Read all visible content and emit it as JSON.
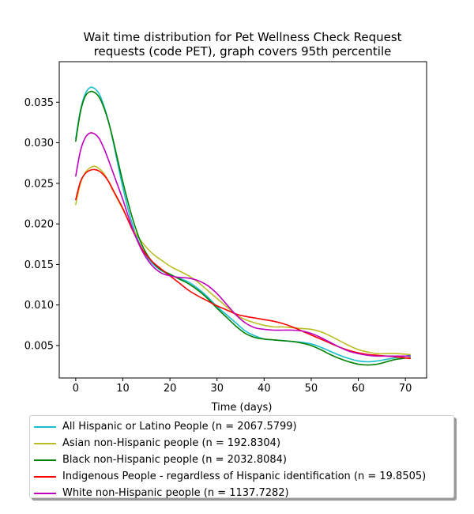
{
  "chart_data": {
    "type": "line",
    "title": "Wait time distribution  for Pet Wellness Check Request",
    "subtitle": "requests (code PET), graph covers 95th percentile",
    "xlabel": "Time (days)",
    "ylabel": "",
    "xlim": [
      -3.5,
      74.5
    ],
    "ylim": [
      0.001,
      0.04
    ],
    "xticks": [
      0,
      10,
      20,
      30,
      40,
      50,
      60,
      70
    ],
    "yticks": [
      0.005,
      0.01,
      0.015,
      0.02,
      0.025,
      0.03,
      0.035
    ],
    "xtick_labels": [
      "0",
      "10",
      "20",
      "30",
      "40",
      "50",
      "60",
      "70"
    ],
    "ytick_labels": [
      "0.005",
      "0.010",
      "0.015",
      "0.020",
      "0.025",
      "0.030",
      "0.035"
    ],
    "grid": false,
    "legend_position": "below",
    "series": [
      {
        "name": "All Hispanic or Latino People (n = 2067.5799)",
        "color": "#17becf",
        "x": [
          0,
          1,
          2,
          3,
          4,
          5,
          6,
          7,
          8,
          10,
          12,
          14,
          16,
          18,
          20,
          22,
          24,
          26,
          28,
          30,
          32,
          34,
          36,
          38,
          40,
          42,
          44,
          46,
          48,
          50,
          52,
          54,
          56,
          58,
          60,
          62,
          64,
          66,
          68,
          71
        ],
        "y": [
          0.0305,
          0.034,
          0.036,
          0.0368,
          0.0367,
          0.036,
          0.0345,
          0.0325,
          0.03,
          0.0245,
          0.02,
          0.017,
          0.0153,
          0.0143,
          0.0137,
          0.0133,
          0.0128,
          0.012,
          0.011,
          0.0098,
          0.0088,
          0.0078,
          0.0068,
          0.0062,
          0.0058,
          0.0057,
          0.0056,
          0.0055,
          0.0054,
          0.0052,
          0.0048,
          0.0043,
          0.0038,
          0.0034,
          0.0031,
          0.003,
          0.0031,
          0.0033,
          0.0035,
          0.0038
        ]
      },
      {
        "name": "Asian non-Hispanic people (n = 192.8304)",
        "color": "#bcbd22",
        "x": [
          0,
          1,
          2,
          3,
          4,
          5,
          6,
          7,
          8,
          10,
          12,
          14,
          16,
          18,
          20,
          22,
          24,
          26,
          28,
          30,
          32,
          34,
          36,
          38,
          40,
          42,
          44,
          46,
          48,
          50,
          52,
          54,
          56,
          58,
          60,
          62,
          64,
          66,
          68,
          71
        ],
        "y": [
          0.0224,
          0.025,
          0.0263,
          0.0269,
          0.0271,
          0.0268,
          0.0262,
          0.0252,
          0.024,
          0.0218,
          0.0195,
          0.0178,
          0.0165,
          0.0156,
          0.0148,
          0.0142,
          0.0136,
          0.0128,
          0.0118,
          0.0108,
          0.0098,
          0.0088,
          0.0082,
          0.0078,
          0.0075,
          0.0073,
          0.0073,
          0.0072,
          0.0071,
          0.007,
          0.0067,
          0.0062,
          0.0056,
          0.005,
          0.0045,
          0.0042,
          0.004,
          0.004,
          0.004,
          0.0039
        ]
      },
      {
        "name": "Black non-Hispanic people (n = 2032.8084)",
        "color": "#008000",
        "x": [
          0,
          1,
          2,
          3,
          4,
          5,
          6,
          7,
          8,
          10,
          12,
          14,
          16,
          18,
          20,
          22,
          24,
          26,
          28,
          30,
          32,
          34,
          36,
          38,
          40,
          42,
          44,
          46,
          48,
          50,
          52,
          54,
          56,
          58,
          60,
          62,
          64,
          66,
          68,
          71
        ],
        "y": [
          0.0302,
          0.0338,
          0.0357,
          0.0363,
          0.0362,
          0.0356,
          0.0343,
          0.0325,
          0.0302,
          0.0252,
          0.0208,
          0.0175,
          0.0155,
          0.0144,
          0.0138,
          0.0132,
          0.0126,
          0.0118,
          0.0108,
          0.0096,
          0.0085,
          0.0074,
          0.0065,
          0.006,
          0.0058,
          0.0057,
          0.0056,
          0.0055,
          0.0053,
          0.005,
          0.0045,
          0.0039,
          0.0034,
          0.003,
          0.0027,
          0.0026,
          0.0027,
          0.003,
          0.0033,
          0.0035
        ]
      },
      {
        "name": "Indigenous People - regardless of Hispanic identification (n = 19.8505)",
        "color": "#ff0000",
        "x": [
          0,
          1,
          2,
          3,
          4,
          5,
          6,
          7,
          8,
          10,
          12,
          14,
          16,
          18,
          20,
          22,
          24,
          26,
          28,
          30,
          32,
          34,
          36,
          38,
          40,
          42,
          44,
          46,
          48,
          50,
          52,
          54,
          56,
          58,
          60,
          62,
          64,
          66,
          68,
          71
        ],
        "y": [
          0.023,
          0.0252,
          0.0262,
          0.0266,
          0.0267,
          0.0265,
          0.026,
          0.0252,
          0.0241,
          0.0219,
          0.0193,
          0.017,
          0.0155,
          0.0145,
          0.0136,
          0.0127,
          0.0118,
          0.0111,
          0.0105,
          0.0099,
          0.0094,
          0.0089,
          0.0086,
          0.0084,
          0.0082,
          0.008,
          0.0077,
          0.0073,
          0.0068,
          0.0063,
          0.0058,
          0.0053,
          0.0048,
          0.0044,
          0.0041,
          0.0039,
          0.0038,
          0.0037,
          0.0036,
          0.0034
        ]
      },
      {
        "name": "White non-Hispanic people (n = 1137.7282)",
        "color": "#bf00bf",
        "x": [
          0,
          1,
          2,
          3,
          4,
          5,
          6,
          7,
          8,
          10,
          12,
          14,
          16,
          18,
          20,
          22,
          24,
          26,
          28,
          30,
          32,
          34,
          36,
          38,
          40,
          42,
          44,
          46,
          48,
          50,
          52,
          54,
          56,
          58,
          60,
          62,
          64,
          66,
          68,
          71
        ],
        "y": [
          0.0259,
          0.029,
          0.0306,
          0.0312,
          0.0311,
          0.0305,
          0.0293,
          0.0278,
          0.0262,
          0.023,
          0.0195,
          0.0168,
          0.015,
          0.014,
          0.0136,
          0.0134,
          0.0133,
          0.013,
          0.0124,
          0.0114,
          0.0101,
          0.0088,
          0.0078,
          0.0072,
          0.007,
          0.0069,
          0.0069,
          0.0069,
          0.0068,
          0.0065,
          0.006,
          0.0054,
          0.0048,
          0.0043,
          0.004,
          0.0038,
          0.0037,
          0.0037,
          0.0037,
          0.0037
        ]
      }
    ]
  }
}
